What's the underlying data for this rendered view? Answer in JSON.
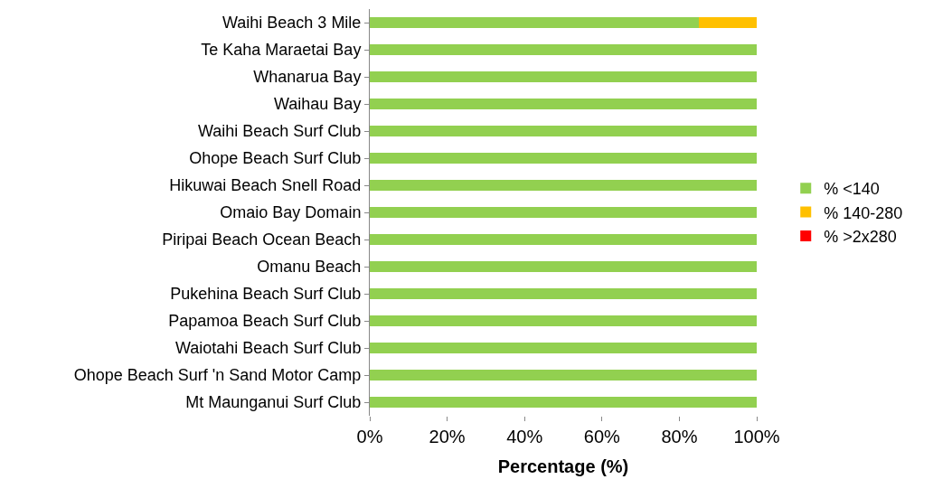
{
  "chart_data": {
    "type": "bar",
    "orientation": "horizontal",
    "stacked": true,
    "xlabel": "Percentage (%)",
    "categories": [
      "Waihi Beach 3 Mile",
      "Te Kaha Maraetai Bay",
      "Whanarua Bay",
      "Waihau Bay",
      "Waihi Beach Surf Club",
      "Ohope Beach Surf Club",
      "Hikuwai Beach Snell Road",
      "Omaio Bay Domain",
      "Piripai Beach Ocean Beach",
      "Omanu Beach",
      "Pukehina Beach Surf Club",
      "Papamoa Beach Surf Club",
      "Waiotahi Beach Surf Club",
      "Ohope Beach Surf 'n Sand Motor Camp",
      "Mt Maunganui Surf Club"
    ],
    "series": [
      {
        "name": "% <140",
        "color": "#92d050",
        "values": [
          85,
          100,
          100,
          100,
          100,
          100,
          100,
          100,
          100,
          100,
          100,
          100,
          100,
          100,
          100
        ]
      },
      {
        "name": "% 140-280",
        "color": "#ffc000",
        "values": [
          15,
          0,
          0,
          0,
          0,
          0,
          0,
          0,
          0,
          0,
          0,
          0,
          0,
          0,
          0
        ]
      },
      {
        "name": "% >2x280",
        "color": "#ff0000",
        "values": [
          0,
          0,
          0,
          0,
          0,
          0,
          0,
          0,
          0,
          0,
          0,
          0,
          0,
          0,
          0
        ]
      }
    ],
    "xlim": [
      0,
      100
    ],
    "xticks": [
      {
        "value": 0,
        "label": "0%"
      },
      {
        "value": 20,
        "label": "20%"
      },
      {
        "value": 40,
        "label": "40%"
      },
      {
        "value": 60,
        "label": "60%"
      },
      {
        "value": 80,
        "label": "80%"
      },
      {
        "value": 100,
        "label": "100%"
      }
    ],
    "legend": "right"
  }
}
